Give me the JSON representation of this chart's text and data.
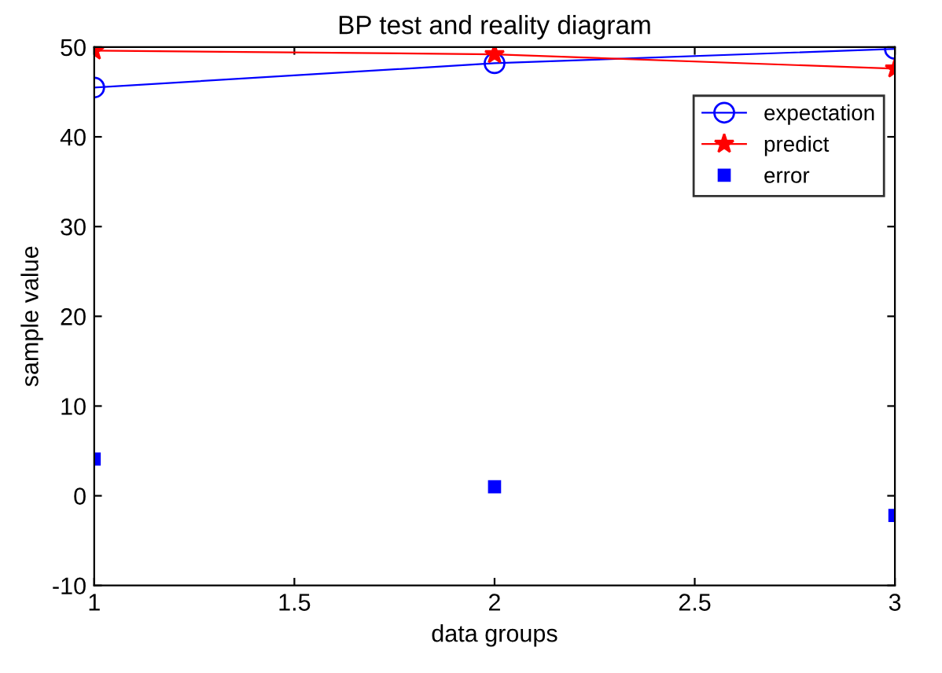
{
  "chart_data": {
    "type": "line",
    "title": "BP test and reality diagram",
    "xlabel": "data groups",
    "ylabel": "sample value",
    "x": [
      1,
      2,
      3
    ],
    "series": [
      {
        "name": "expectation",
        "color": "#0000ff",
        "marker": "circle",
        "values": [
          45.5,
          48.2,
          49.8
        ]
      },
      {
        "name": "predict",
        "color": "#ff0000",
        "marker": "star",
        "values": [
          49.6,
          49.2,
          47.6
        ]
      },
      {
        "name": "error",
        "type": "scatter",
        "color": "#0000ff",
        "marker": "square",
        "values": [
          4.1,
          1.0,
          -2.2
        ]
      }
    ],
    "xlim": [
      1,
      3
    ],
    "xticks": [
      1,
      1.5,
      2,
      2.5,
      3
    ],
    "ylim": [
      -10,
      50
    ],
    "yticks": [
      -10,
      0,
      10,
      20,
      30,
      40,
      50
    ],
    "grid": false,
    "legend": "top right"
  }
}
